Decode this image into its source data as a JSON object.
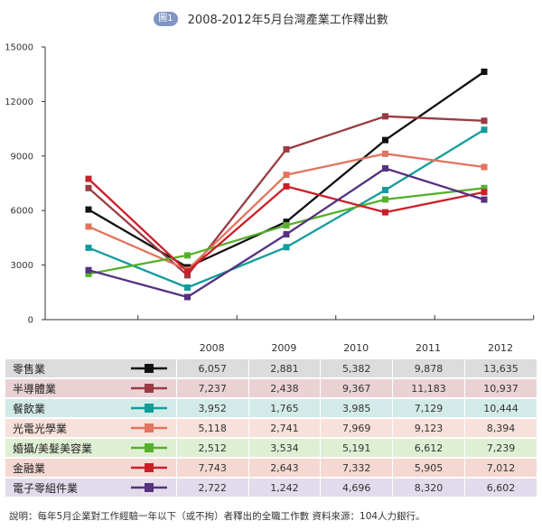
{
  "figure_label": "圖1",
  "chart_data": {
    "type": "line",
    "title": "2008-2012年5月台灣產業工作釋出數",
    "categories": [
      "2008",
      "2009",
      "2010",
      "2011",
      "2012"
    ],
    "ylim": [
      0,
      15000
    ],
    "yticks": [
      "0",
      "3000",
      "6000",
      "9000",
      "12000",
      "15000"
    ],
    "grid": false,
    "legend": "table-below",
    "series": [
      {
        "name": "零售業",
        "color": "#111111",
        "row_bg": "#dcdcdc",
        "values": [
          6057,
          2881,
          5382,
          9878,
          13635
        ],
        "labels": [
          "6,057",
          "2,881",
          "5,382",
          "9,878",
          "13,635"
        ]
      },
      {
        "name": "半導體業",
        "color": "#9a3b43",
        "row_bg": "#ead2d4",
        "values": [
          7237,
          2438,
          9367,
          11183,
          10937
        ],
        "labels": [
          "7,237",
          "2,438",
          "9,367",
          "11,183",
          "10,937"
        ]
      },
      {
        "name": "餐飲業",
        "color": "#149c9c",
        "row_bg": "#d3ebe8",
        "values": [
          3952,
          1765,
          3985,
          7129,
          10444
        ],
        "labels": [
          "3,952",
          "1,765",
          "3,985",
          "7,129",
          "10,444"
        ]
      },
      {
        "name": "光電光學業",
        "color": "#e3735e",
        "row_bg": "#f7e1da",
        "values": [
          5118,
          2741,
          7969,
          9123,
          8394
        ],
        "labels": [
          "5,118",
          "2,741",
          "7,969",
          "9,123",
          "8,394"
        ]
      },
      {
        "name": "婚攝/美髮美容業",
        "color": "#56b02a",
        "row_bg": "#dfefd3",
        "values": [
          2512,
          3534,
          5191,
          6612,
          7239
        ],
        "labels": [
          "2,512",
          "3,534",
          "5,191",
          "6,612",
          "7,239"
        ]
      },
      {
        "name": "金融業",
        "color": "#cc1f28",
        "row_bg": "#f5d8d2",
        "values": [
          7743,
          2643,
          7332,
          5905,
          7012
        ],
        "labels": [
          "7,743",
          "2,643",
          "7,332",
          "5,905",
          "7,012"
        ]
      },
      {
        "name": "電子零組件業",
        "color": "#55317f",
        "row_bg": "#e2dbeb",
        "values": [
          2722,
          1242,
          4696,
          8320,
          6602
        ],
        "labels": [
          "2,722",
          "1,242",
          "4,696",
          "8,320",
          "6,602"
        ]
      }
    ]
  },
  "footnote": "說明：每年5月企業對工作經驗一年以下（或不拘）者釋出的全職工作數 資料來源：104人力銀行。"
}
